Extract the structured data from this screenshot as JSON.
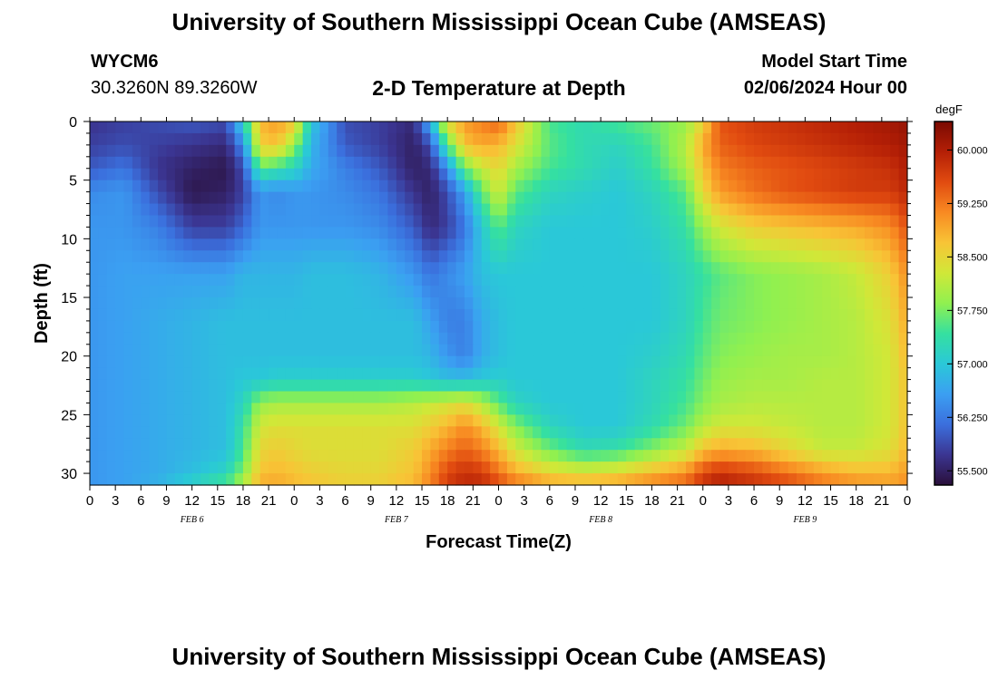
{
  "header": {
    "title": "University of Southern Mississippi Ocean Cube (AMSEAS)",
    "station": "WYCM6",
    "position": "30.3260N  89.3260W",
    "subtitle": "2-D Temperature at Depth",
    "model_start_label": "Model Start Time",
    "model_start_value": "02/06/2024 Hour 00"
  },
  "footer": {
    "title": "University of Southern Mississippi Ocean Cube (AMSEAS)"
  },
  "chart_data": {
    "type": "heatmap",
    "title": "2-D Temperature at Depth",
    "xlabel": "Forecast Time(Z)",
    "ylabel": "Depth (ft)",
    "x_ticks": [
      "0",
      "3",
      "6",
      "9",
      "12",
      "15",
      "18",
      "21",
      "0",
      "3",
      "6",
      "9",
      "12",
      "15",
      "18",
      "21",
      "0",
      "3",
      "6",
      "9",
      "12",
      "15",
      "18",
      "21",
      "0",
      "3",
      "6",
      "9",
      "12",
      "15",
      "18",
      "21",
      "0"
    ],
    "x_hours_range": [
      0,
      96
    ],
    "date_labels": [
      {
        "label": "FEB 6",
        "hour": 12
      },
      {
        "label": "FEB 7",
        "hour": 36
      },
      {
        "label": "FEB 8",
        "hour": 60
      },
      {
        "label": "FEB 9",
        "hour": 84
      }
    ],
    "y_ticks": [
      0,
      5,
      10,
      15,
      20,
      25,
      30
    ],
    "y_range": [
      0,
      31
    ],
    "y_inverted": true,
    "colorbar": {
      "unit": "degF",
      "ticks": [
        "55.500",
        "56.250",
        "57.000",
        "57.750",
        "58.500",
        "59.250",
        "60.000"
      ],
      "range": [
        55.3,
        60.4
      ],
      "colors": [
        "#2a0f3a",
        "#3b3591",
        "#3b6fdd",
        "#3b9ff2",
        "#2ac8d8",
        "#35e0a0",
        "#90f050",
        "#d0e838",
        "#f8c436",
        "#f88a22",
        "#e14b10",
        "#b41f06",
        "#7a0a02"
      ]
    },
    "hours": [
      0,
      4,
      8,
      12,
      16,
      18,
      20,
      22,
      24,
      26,
      30,
      34,
      38,
      40,
      42,
      44,
      46,
      48,
      50,
      54,
      58,
      62,
      66,
      70,
      72,
      74,
      78,
      82,
      86,
      90,
      94,
      96
    ],
    "depths": [
      0,
      2,
      4,
      6,
      9,
      13,
      17,
      20,
      22,
      24,
      26,
      28,
      30,
      31
    ],
    "values": [
      [
        55.7,
        55.8,
        55.9,
        56.0,
        55.9,
        57.2,
        58.8,
        59.0,
        58.7,
        57.0,
        55.9,
        55.8,
        55.6,
        56.8,
        58.5,
        59.0,
        59.2,
        59.4,
        58.7,
        57.5,
        57.3,
        57.5,
        57.7,
        57.9,
        58.5,
        59.5,
        59.7,
        59.8,
        59.9,
        60.0,
        60.1,
        60.2
      ],
      [
        55.8,
        55.9,
        55.8,
        55.7,
        55.6,
        56.4,
        58.6,
        58.7,
        57.9,
        56.8,
        56.0,
        55.8,
        55.5,
        55.9,
        57.6,
        58.7,
        58.9,
        58.8,
        58.4,
        57.6,
        57.3,
        57.2,
        57.5,
        58.1,
        58.9,
        59.4,
        59.6,
        59.7,
        59.8,
        59.9,
        60.0,
        60.1
      ],
      [
        56.0,
        56.2,
        55.7,
        55.5,
        55.4,
        55.9,
        57.6,
        57.4,
        57.2,
        56.7,
        56.3,
        56.0,
        55.5,
        55.6,
        56.4,
        57.7,
        58.2,
        58.5,
        58.0,
        57.5,
        57.3,
        57.1,
        57.4,
        58.0,
        58.7,
        59.2,
        59.4,
        59.5,
        59.6,
        59.7,
        59.8,
        60.0
      ],
      [
        56.4,
        56.5,
        55.9,
        55.4,
        55.5,
        55.8,
        56.5,
        56.4,
        56.5,
        56.5,
        56.4,
        56.2,
        55.7,
        55.5,
        55.9,
        56.6,
        57.6,
        58.3,
        57.6,
        57.2,
        57.1,
        57.0,
        57.2,
        57.6,
        58.5,
        59.0,
        59.3,
        59.5,
        59.6,
        59.7,
        59.7,
        59.9
      ],
      [
        56.5,
        56.5,
        56.3,
        55.8,
        55.8,
        56.1,
        56.5,
        56.5,
        56.5,
        56.5,
        56.5,
        56.4,
        56.0,
        55.6,
        55.8,
        56.2,
        57.0,
        57.6,
        57.2,
        57.0,
        57.0,
        57.0,
        57.1,
        57.4,
        57.9,
        58.3,
        58.6,
        58.7,
        58.8,
        58.9,
        59.1,
        59.5
      ],
      [
        56.5,
        56.6,
        56.6,
        56.6,
        56.6,
        56.8,
        56.8,
        56.8,
        56.8,
        56.9,
        56.9,
        56.8,
        56.5,
        56.2,
        56.4,
        56.6,
        56.9,
        57.0,
        57.0,
        57.0,
        57.0,
        57.0,
        57.0,
        57.2,
        57.4,
        57.6,
        57.8,
        57.9,
        58.0,
        58.2,
        58.6,
        59.1
      ],
      [
        56.5,
        56.6,
        56.7,
        56.8,
        56.9,
        56.9,
        56.9,
        56.9,
        56.9,
        56.9,
        56.9,
        56.9,
        56.9,
        56.6,
        56.3,
        56.3,
        56.7,
        56.9,
        57.0,
        57.0,
        57.0,
        57.0,
        57.0,
        57.2,
        57.5,
        57.7,
        57.8,
        57.9,
        58.0,
        58.1,
        58.4,
        58.9
      ],
      [
        56.5,
        56.6,
        56.7,
        56.8,
        56.9,
        56.9,
        56.9,
        56.9,
        56.9,
        56.9,
        56.9,
        56.9,
        56.9,
        56.8,
        56.5,
        56.3,
        56.7,
        56.9,
        57.0,
        57.0,
        57.0,
        57.0,
        57.1,
        57.3,
        57.6,
        57.8,
        57.9,
        58.0,
        58.0,
        58.1,
        58.3,
        58.8
      ],
      [
        56.5,
        56.6,
        56.7,
        56.8,
        56.9,
        57.0,
        57.0,
        57.1,
        57.1,
        57.1,
        57.1,
        57.1,
        57.1,
        57.0,
        56.9,
        56.9,
        57.0,
        57.1,
        57.0,
        57.0,
        57.0,
        57.0,
        57.2,
        57.4,
        57.7,
        57.9,
        58.0,
        58.0,
        58.1,
        58.1,
        58.3,
        58.7
      ],
      [
        56.5,
        56.6,
        56.7,
        56.8,
        56.9,
        57.2,
        57.9,
        58.0,
        58.0,
        58.0,
        58.0,
        58.0,
        58.1,
        58.2,
        58.3,
        58.4,
        58.1,
        57.6,
        57.2,
        57.0,
        57.0,
        57.0,
        57.2,
        57.5,
        57.8,
        58.0,
        58.1,
        58.1,
        58.1,
        58.1,
        58.3,
        58.7
      ],
      [
        56.5,
        56.6,
        56.7,
        56.8,
        56.9,
        57.4,
        58.3,
        58.4,
        58.4,
        58.4,
        58.4,
        58.4,
        58.4,
        58.6,
        58.8,
        59.1,
        58.8,
        58.3,
        57.8,
        57.2,
        57.0,
        57.0,
        57.3,
        57.7,
        58.1,
        58.3,
        58.3,
        58.2,
        58.1,
        58.1,
        58.3,
        58.7
      ],
      [
        56.5,
        56.6,
        56.7,
        56.8,
        56.9,
        57.5,
        58.5,
        58.6,
        58.5,
        58.4,
        58.4,
        58.4,
        58.6,
        58.9,
        59.2,
        59.4,
        59.2,
        58.8,
        58.3,
        57.7,
        57.3,
        57.4,
        57.8,
        58.2,
        58.7,
        58.9,
        58.8,
        58.5,
        58.2,
        58.2,
        58.4,
        58.8
      ],
      [
        56.5,
        56.6,
        56.7,
        56.9,
        57.2,
        57.8,
        58.7,
        58.8,
        58.7,
        58.6,
        58.5,
        58.5,
        58.7,
        59.1,
        59.6,
        59.8,
        59.7,
        59.3,
        58.9,
        58.5,
        58.4,
        58.5,
        58.8,
        59.1,
        59.6,
        59.8,
        59.6,
        59.3,
        59.0,
        58.8,
        58.8,
        59.0
      ],
      [
        56.5,
        56.6,
        56.8,
        57.2,
        57.6,
        58.1,
        58.9,
        58.9,
        58.8,
        58.7,
        58.6,
        58.6,
        58.8,
        59.2,
        59.7,
        59.9,
        59.9,
        59.6,
        59.3,
        59.0,
        58.9,
        59.0,
        59.2,
        59.4,
        59.8,
        60.0,
        59.8,
        59.6,
        59.3,
        59.1,
        59.0,
        59.1
      ]
    ]
  }
}
